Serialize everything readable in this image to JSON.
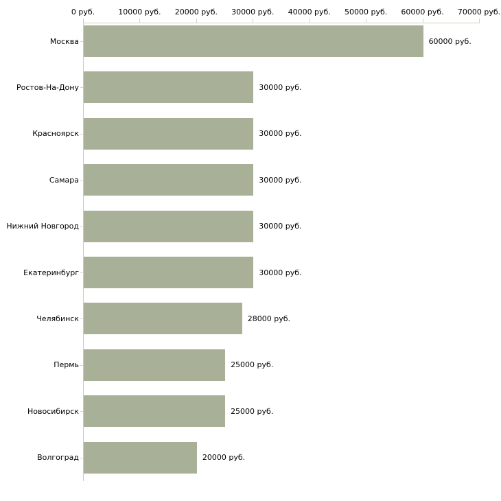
{
  "chart_data": {
    "type": "bar",
    "orientation": "horizontal",
    "title": "",
    "xlabel": "",
    "ylabel": "",
    "grid": false,
    "categories": [
      "Москва",
      "Ростов-На-Дону",
      "Красноярск",
      "Самара",
      "Нижний Новгород",
      "Екатеринбург",
      "Челябинск",
      "Пермь",
      "Новосибирск",
      "Волгоград"
    ],
    "values": [
      60000,
      30000,
      30000,
      30000,
      30000,
      30000,
      28000,
      25000,
      25000,
      20000
    ],
    "value_labels": [
      "60000 руб.",
      "30000 руб.",
      "30000 руб.",
      "30000 руб.",
      "30000 руб.",
      "30000 руб.",
      "28000 руб.",
      "25000 руб.",
      "25000 руб.",
      "20000 руб."
    ],
    "x_axis": {
      "position": "top",
      "min": 0,
      "max": 70000,
      "tick_values": [
        0,
        10000,
        20000,
        30000,
        40000,
        50000,
        60000,
        70000
      ],
      "tick_labels": [
        "0 руб.",
        "10000 руб.",
        "20000 руб.",
        "30000 руб.",
        "40000 руб.",
        "50000 руб.",
        "60000 руб.",
        "70000 руб."
      ]
    },
    "colors": {
      "bar": "#a9b098",
      "axis_line": "#d3d3bf",
      "category_axis_line": "#c9c9c9",
      "text": "#000000"
    }
  }
}
